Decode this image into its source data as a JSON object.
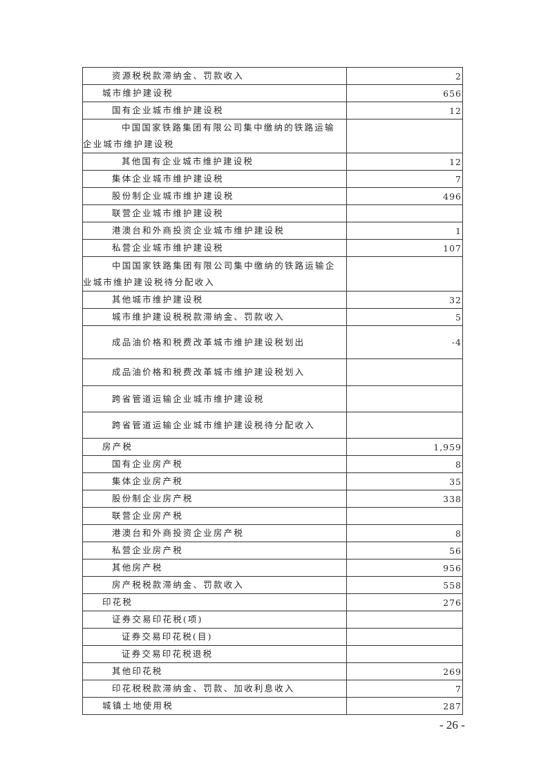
{
  "table": {
    "rows": [
      {
        "label": "资源税税款滞纳金、罚款收入",
        "value": "2",
        "level": 1
      },
      {
        "label": "城市维护建设税",
        "value": "656",
        "level": 0
      },
      {
        "label": "国有企业城市维护建设税",
        "value": "12",
        "level": 1
      },
      {
        "label": "中国国家铁路集团有限公司集中缴纳的铁路运输企业城市维护建设税",
        "value": "",
        "level": 2
      },
      {
        "label": "其他国有企业城市维护建设税",
        "value": "12",
        "level": 2
      },
      {
        "label": "集体企业城市维护建设税",
        "value": "7",
        "level": 1
      },
      {
        "label": "股份制企业城市维护建设税",
        "value": "496",
        "level": 1
      },
      {
        "label": "联营企业城市维护建设税",
        "value": "",
        "level": 1
      },
      {
        "label": "港澳台和外商投资企业城市维护建设税",
        "value": "1",
        "level": 1
      },
      {
        "label": "私营企业城市维护建设税",
        "value": "107",
        "level": 1
      },
      {
        "label": "中国国家铁路集团有限公司集中缴纳的铁路运输企业城市维护建设税待分配收入",
        "value": "",
        "level": 1
      },
      {
        "label": "其他城市维护建设税",
        "value": "32",
        "level": 1
      },
      {
        "label": "城市维护建设税税款滞纳金、罚款收入",
        "value": "5",
        "level": 1
      },
      {
        "label": "成品油价格和税费改革城市维护建设税划出",
        "value": "-4",
        "level": 1
      },
      {
        "label": "成品油价格和税费改革城市维护建设税划入",
        "value": "",
        "level": 1
      },
      {
        "label": "跨省管道运输企业城市维护建设税",
        "value": "",
        "level": 1
      },
      {
        "label": "跨省管道运输企业城市维护建设税待分配收入",
        "value": "",
        "level": 1
      },
      {
        "label": "房产税",
        "value": "1,959",
        "level": 0
      },
      {
        "label": "国有企业房产税",
        "value": "8",
        "level": 1
      },
      {
        "label": "集体企业房产税",
        "value": "35",
        "level": 1
      },
      {
        "label": "股份制企业房产税",
        "value": "338",
        "level": 1
      },
      {
        "label": "联营企业房产税",
        "value": "",
        "level": 1
      },
      {
        "label": "港澳台和外商投资企业房产税",
        "value": "8",
        "level": 1
      },
      {
        "label": "私营企业房产税",
        "value": "56",
        "level": 1
      },
      {
        "label": "其他房产税",
        "value": "956",
        "level": 1
      },
      {
        "label": "房产税税款滞纳金、罚款收入",
        "value": "558",
        "level": 1
      },
      {
        "label": "印花税",
        "value": "276",
        "level": 0
      },
      {
        "label": "证券交易印花税(项)",
        "value": "",
        "level": 1
      },
      {
        "label": "证券交易印花税(目)",
        "value": "",
        "level": 2
      },
      {
        "label": "证券交易印花税退税",
        "value": "",
        "level": 2
      },
      {
        "label": "其他印花税",
        "value": "269",
        "level": 1
      },
      {
        "label": "印花税税款滞纳金、罚款、加收利息收入",
        "value": "7",
        "level": 1
      },
      {
        "label": "城镇土地使用税",
        "value": "287",
        "level": 0
      }
    ]
  },
  "footer": {
    "page_number": "- 26 -"
  }
}
